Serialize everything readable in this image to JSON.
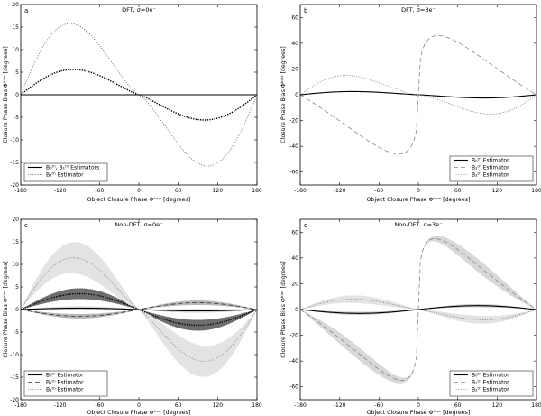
{
  "chart_data": [
    {
      "type": "line",
      "panel_letter": "a",
      "title": "DFT, σ=0e⁻",
      "xlabel": "Object Closure Phase Φᵗʳᵘᵉ [degrees]",
      "ylabel": "Closure Phase Bias Φᵇⁱᵃˢ [degrees]",
      "xlim": [
        -180,
        180
      ],
      "ylim": [
        -20,
        20
      ],
      "xticks": [
        -180,
        -120,
        -60,
        0,
        60,
        120,
        180
      ],
      "yticks": [
        -20,
        -15,
        -10,
        -5,
        0,
        5,
        10,
        15,
        20
      ],
      "grid": false,
      "legend_position": "lower-left",
      "series": [
        {
          "name": "B₀ᵗʰ, B₁ᵗʰ Estimators",
          "style": "solid",
          "color": "#000000",
          "width": 1.1,
          "amp": 0,
          "peak": -90
        },
        {
          "name": "",
          "style": "dotted-heavy",
          "color": "#000000",
          "width": 1.5,
          "amp": 5.6,
          "peak": -100
        },
        {
          "name": "B₂ᵗʰ Estimator",
          "style": "dotted",
          "color": "#555555",
          "width": 0.8,
          "amp": 15.8,
          "peak": -105
        }
      ]
    },
    {
      "type": "line",
      "panel_letter": "b",
      "title": "DFT, σ=3e⁻",
      "xlabel": "Object Closure Phase Φᵗʳᵘᵉ [degrees]",
      "ylabel": "Closure Phase Bias Φᵇⁱᵃˢ [degrees]",
      "xlim": [
        -180,
        180
      ],
      "ylim": [
        -70,
        70
      ],
      "xticks": [
        -180,
        -120,
        -60,
        0,
        60,
        120,
        180
      ],
      "yticks": [
        -60,
        -40,
        -20,
        0,
        20,
        40,
        60
      ],
      "grid": false,
      "legend_position": "lower-right",
      "series": [
        {
          "name": "B₀ᵗʰ Estimator",
          "style": "solid",
          "color": "#000000",
          "width": 1.1,
          "amp": 2.5,
          "peak": -100
        },
        {
          "name": "B₁ᵗʰ Estimator",
          "style": "dashed",
          "color": "#888888",
          "width": 0.8,
          "amp": -46,
          "peak": -30
        },
        {
          "name": "B₂ᵗʰ Estimator",
          "style": "dotted",
          "color": "#777777",
          "width": 0.8,
          "amp": 15,
          "peak": -110
        }
      ]
    },
    {
      "type": "line",
      "panel_letter": "c",
      "title": "Non-DFT, σ=0e⁻",
      "xlabel": "Object Closure Phase Φᵗʳᵘᵉ [degrees]",
      "ylabel": "Closure Phase Bias Φᵇⁱᵃˢ [degrees]",
      "xlim": [
        -180,
        180
      ],
      "ylim": [
        -20,
        20
      ],
      "xticks": [
        -180,
        -120,
        -60,
        0,
        60,
        120,
        180
      ],
      "yticks": [
        -20,
        -15,
        -10,
        -5,
        0,
        5,
        10,
        15,
        20
      ],
      "grid": false,
      "legend_position": "lower-left",
      "series": [
        {
          "name": "B₀ᵗʰ Estimator",
          "style": "solid",
          "color": "#000000",
          "width": 1.1,
          "amp": 0.3,
          "peak": -90,
          "band": 0.4,
          "band_color": "#d0d0d0"
        },
        {
          "name": "B₁ᵗʰ Estimator",
          "style": "dashed",
          "color": "#333333",
          "width": 0.8,
          "amp": -1.5,
          "peak": -90,
          "band": 0.5,
          "band_color": "#b8b8b8"
        },
        {
          "name": "",
          "style": "dotted-heavy",
          "color": "#000000",
          "width": 1.4,
          "amp": 3.5,
          "peak": -90,
          "band": 1.2,
          "band_color": "#6e6e6e"
        },
        {
          "name": "B₂ᵗʰ Estimator",
          "style": "dotted",
          "color": "#777777",
          "width": 0.8,
          "amp": 11.5,
          "peak": -100,
          "band": 3.5,
          "band_color": "#e3e3e3"
        }
      ]
    },
    {
      "type": "line",
      "panel_letter": "d",
      "title": "Non-DFT, σ=3e⁻",
      "xlabel": "Object Closure Phase Φᵗʳᵘᵉ [degrees]",
      "ylabel": "Closure Phase Bias Φᵇⁱᵃˢ [degrees]",
      "xlim": [
        -180,
        180
      ],
      "ylim": [
        -70,
        70
      ],
      "xticks": [
        -180,
        -120,
        -60,
        0,
        60,
        120,
        180
      ],
      "yticks": [
        -60,
        -40,
        -20,
        0,
        20,
        40,
        60
      ],
      "grid": false,
      "legend_position": "lower-right",
      "series": [
        {
          "name": "B₀ᵗʰ Estimator",
          "style": "solid",
          "color": "#000000",
          "width": 1.1,
          "amp": -3,
          "peak": -90,
          "band": 1.2,
          "band_color": "#c8c8c8"
        },
        {
          "name": "B₁ᵗʰ Estimator",
          "style": "dashed",
          "color": "#888888",
          "width": 0.8,
          "amp": -55,
          "peak": -25,
          "band": 5,
          "band_color": "#d8d8d8"
        },
        {
          "name": "B₂ᵗʰ Estimator",
          "style": "dotted",
          "color": "#777777",
          "width": 0.8,
          "amp": 8,
          "peak": -100,
          "band": 3,
          "band_color": "#e3e3e3"
        }
      ]
    }
  ]
}
